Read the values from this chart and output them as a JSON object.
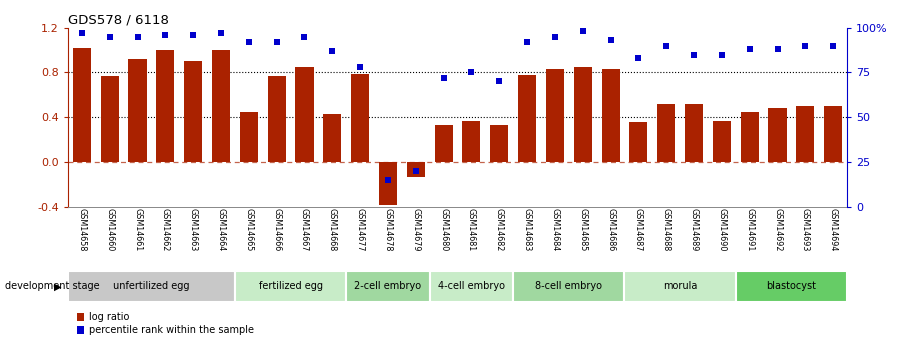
{
  "title": "GDS578 / 6118",
  "samples": [
    "GSM14658",
    "GSM14660",
    "GSM14661",
    "GSM14662",
    "GSM14663",
    "GSM14664",
    "GSM14665",
    "GSM14666",
    "GSM14667",
    "GSM14668",
    "GSM14677",
    "GSM14678",
    "GSM14679",
    "GSM14680",
    "GSM14681",
    "GSM14682",
    "GSM14683",
    "GSM14684",
    "GSM14685",
    "GSM14686",
    "GSM14687",
    "GSM14688",
    "GSM14689",
    "GSM14690",
    "GSM14691",
    "GSM14692",
    "GSM14693",
    "GSM14694"
  ],
  "log_ratio": [
    1.02,
    0.77,
    0.92,
    1.0,
    0.9,
    1.0,
    0.45,
    0.77,
    0.85,
    0.43,
    0.79,
    -0.38,
    -0.13,
    0.33,
    0.37,
    0.33,
    0.78,
    0.83,
    0.85,
    0.83,
    0.36,
    0.52,
    0.52,
    0.37,
    0.45,
    0.48,
    0.5,
    0.5
  ],
  "percentile": [
    97,
    95,
    95,
    96,
    96,
    97,
    92,
    92,
    95,
    87,
    78,
    15,
    20,
    72,
    75,
    70,
    92,
    95,
    98,
    93,
    83,
    90,
    85,
    85,
    88,
    88,
    90,
    90
  ],
  "stages": [
    {
      "label": "unfertilized egg",
      "start": 0,
      "end": 6,
      "color": "#c8c8c8"
    },
    {
      "label": "fertilized egg",
      "start": 6,
      "end": 10,
      "color": "#c8ecc8"
    },
    {
      "label": "2-cell embryo",
      "start": 10,
      "end": 13,
      "color": "#a0d8a0"
    },
    {
      "label": "4-cell embryo",
      "start": 13,
      "end": 16,
      "color": "#c8ecc8"
    },
    {
      "label": "8-cell embryo",
      "start": 16,
      "end": 20,
      "color": "#a0d8a0"
    },
    {
      "label": "morula",
      "start": 20,
      "end": 24,
      "color": "#c8ecc8"
    },
    {
      "label": "blastocyst",
      "start": 24,
      "end": 28,
      "color": "#66cc66"
    }
  ],
  "bar_color": "#aa2200",
  "dot_color": "#0000cc",
  "ylim_left": [
    -0.4,
    1.2
  ],
  "ylim_right": [
    0,
    100
  ],
  "yticks_left": [
    -0.4,
    0.0,
    0.4,
    0.8,
    1.2
  ],
  "yticks_right": [
    0,
    25,
    50,
    75,
    100
  ],
  "yticklabels_right": [
    "0",
    "25",
    "50",
    "75",
    "100%"
  ],
  "bg_color": "#ffffff",
  "dev_stage_label": "development stage",
  "legend_items": [
    {
      "color": "#aa2200",
      "label": "log ratio"
    },
    {
      "color": "#0000cc",
      "label": "percentile rank within the sample"
    }
  ]
}
